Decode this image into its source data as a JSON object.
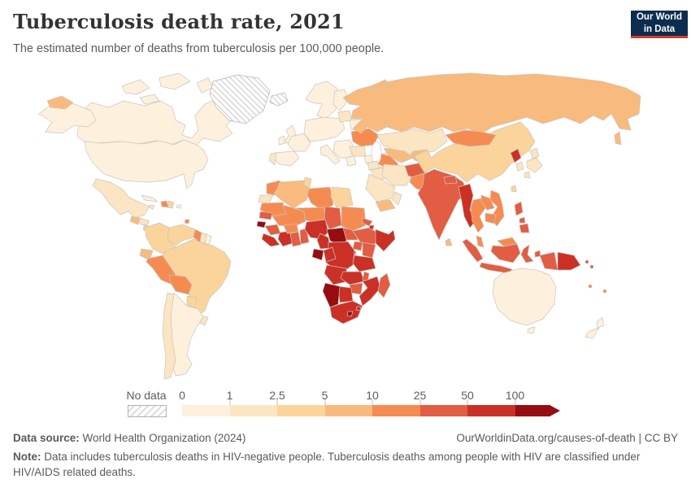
{
  "header": {
    "title": "Tuberculosis death rate, 2021",
    "subtitle": "The estimated number of deaths from tuberculosis per 100,000 people.",
    "logo": {
      "line1": "Our World",
      "line2": "in Data"
    }
  },
  "footer": {
    "source_label": "Data source:",
    "source_text": " World Health Organization (2024)",
    "link": "OurWorldinData.org/causes-of-death | CC BY",
    "note_label": "Note:",
    "note_text": " Data includes tuberculosis deaths in HIV-negative people. Tuberculosis deaths among people with HIV are classified under HIV/AIDS related deaths."
  },
  "colors": {
    "logo_background": "#0d2d4f",
    "logo_accent": "#d33a2b",
    "title_text": "#333333",
    "secondary_text": "#5a5a5a",
    "country_border": "#c8c5be"
  },
  "chart_data": {
    "type": "choropleth_map",
    "title": "Tuberculosis death rate, 2021",
    "unit": "estimated deaths from tuberculosis per 100,000 people",
    "year": "2021",
    "legend": {
      "no_data_label": "No data",
      "tick_labels": [
        "0",
        "1",
        "2.5",
        "5",
        "10",
        "25",
        "50",
        "100"
      ],
      "bins": [
        {
          "range": "0-1",
          "color": "#fdf1dd"
        },
        {
          "range": "1-2.5",
          "color": "#fce5c3"
        },
        {
          "range": "2.5-5",
          "color": "#fbd49c"
        },
        {
          "range": "5-10",
          "color": "#f9ba7d"
        },
        {
          "range": "10-25",
          "color": "#f68b51"
        },
        {
          "range": "25-50",
          "color": "#e25d43"
        },
        {
          "range": "50-100",
          "color": "#cb3027"
        },
        {
          "range": "100+",
          "color": "#970c10"
        },
        {
          "range": "no-data",
          "color": "hatch"
        }
      ],
      "no_data_style": "diagonal-hatch",
      "arrow_at_max": true
    },
    "region_bins": {
      "united-states": "0-1",
      "canada": "0-1",
      "greenland": "no-data",
      "iceland": "no-data",
      "mexico": "1-2.5",
      "guatemala": "5-10",
      "honduras": "1-2.5",
      "nicaragua": "2.5-5",
      "costa-rica": "1-2.5",
      "panama": "5-10",
      "cuba": "0-1",
      "jamaica": "1-2.5",
      "haiti": "10-25",
      "dominican-republic": "2.5-5",
      "puerto-rico": "0-1",
      "trinidad-and-tobago": "10-25",
      "colombia": "2.5-5",
      "venezuela": "2.5-5",
      "guyana": "10-25",
      "suriname": "1-2.5",
      "french-guiana": "0-1",
      "ecuador": "5-10",
      "peru": "10-25",
      "brazil": "2.5-5",
      "bolivia": "10-25",
      "paraguay": "2.5-5",
      "uruguay": "1-2.5",
      "argentina": "0-1",
      "chile": "1-2.5",
      "united-kingdom": "0-1",
      "ireland": "0-1",
      "scandinavia": "0-1",
      "finland": "0-1",
      "central-europe": "0-1",
      "france": "0-1",
      "spain": "0-1",
      "portugal": "1-2.5",
      "italy": "0-1",
      "balkans": "0-1",
      "greece": "0-1",
      "baltics": "1-2.5",
      "belarus": "0-1",
      "ukraine": "10-25",
      "romania": "1-2.5",
      "turkey": "0-1",
      "russia": "5-10",
      "kazakhstan": "1-2.5",
      "uzbekistan": "5-10",
      "turkmenistan": "10-25",
      "kyrgyzstan-tajikistan": "5-10",
      "syria": "1-2.5",
      "iraq": "1-2.5",
      "iran": "1-2.5",
      "saudi-arabia": "1-2.5",
      "yemen": "5-10",
      "oman": "1-2.5",
      "afghanistan": "25-50",
      "pakistan": "10-25",
      "india": "25-50",
      "nepal": "25-50",
      "bangladesh": "25-50",
      "sri-lanka": "5-10",
      "china": "2.5-5",
      "mongolia": "10-25",
      "north-korea": "50-100",
      "south-korea": "1-2.5",
      "japan": "1-2.5",
      "taiwan": "2.5-5",
      "myanmar": "50-100",
      "thailand": "10-25",
      "laos": "10-25",
      "vietnam": "10-25",
      "cambodia": "10-25",
      "malaysia": "10-25",
      "indonesia": "25-50",
      "philippines": "25-50",
      "papua-new-guinea": "50-100",
      "timor-leste": "25-50",
      "solomon-islands": "25-50",
      "vanuatu": "10-25",
      "fiji": "10-25",
      "morocco": "10-25",
      "western-sahara": "1-2.5",
      "algeria": "5-10",
      "tunisia": "2.5-5",
      "libya": "10-25",
      "egypt": "2.5-5",
      "mauritania": "10-25",
      "mali": "10-25",
      "senegal": "25-50",
      "guinea-bissau": "100+",
      "guinea": "25-50",
      "sierra-leone-liberia": "50-100",
      "cote-divoire": "50-100",
      "burkina-faso": "10-25",
      "ghana": "25-50",
      "togo-benin": "25-50",
      "niger": "10-25",
      "nigeria": "50-100",
      "chad": "25-50",
      "sudan": "10-25",
      "eritrea": "25-50",
      "djibouti": "50-100",
      "ethiopia": "25-50",
      "somalia": "50-100",
      "south-sudan": "25-50",
      "central-african-republic": "100+",
      "cameroon": "50-100",
      "gabon": "100+",
      "congo": "50-100",
      "drc": "50-100",
      "uganda": "25-50",
      "kenya": "25-50",
      "rwanda-burundi": "25-50",
      "tanzania": "50-100",
      "angola": "50-100",
      "zambia": "50-100",
      "malawi": "25-50",
      "mozambique": "50-100",
      "madagascar": "25-50",
      "zimbabwe": "25-50",
      "botswana": "50-100",
      "namibia": "100+",
      "south-africa": "50-100",
      "lesotho": "100+",
      "eswatini": "50-100",
      "australia": "0-1",
      "new-zealand": "0-1"
    }
  }
}
